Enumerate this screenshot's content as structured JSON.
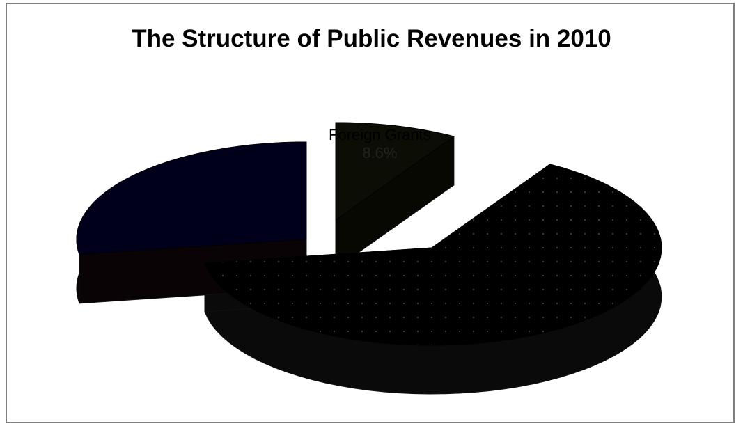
{
  "chart_data": {
    "type": "pie",
    "title": "The Structure of Public Revenues in 2010",
    "slices": [
      {
        "label": "Foreign Grants",
        "value": 8.6,
        "value_label": "8.6%",
        "color": "#0c0d04",
        "side_color": "#070802"
      },
      {
        "label": "",
        "value": 63.9,
        "value_label": "",
        "color": "#000000",
        "side_color": "#0a0a0a"
      },
      {
        "label": "",
        "value": 27.5,
        "value_label": "",
        "color": "#01001a",
        "side_color": "#090306"
      }
    ],
    "three_d": true,
    "legend": "none"
  }
}
